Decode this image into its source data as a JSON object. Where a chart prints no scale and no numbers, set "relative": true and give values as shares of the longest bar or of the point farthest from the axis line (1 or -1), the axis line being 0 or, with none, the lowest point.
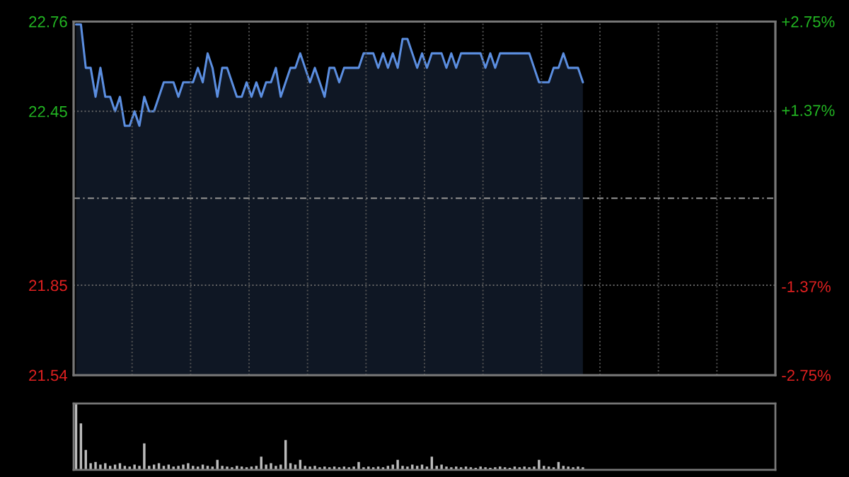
{
  "chart_data": [
    {
      "type": "area",
      "categories": [
        null,
        null,
        null,
        null,
        null,
        null,
        null,
        null,
        null,
        null,
        null,
        null,
        null,
        null,
        null,
        null,
        null,
        null,
        null,
        null,
        null,
        null,
        null,
        null,
        null,
        null,
        null,
        null,
        null,
        null,
        null,
        null,
        null,
        null,
        null,
        null,
        null,
        null,
        null,
        null,
        null,
        null,
        null,
        null,
        null,
        null,
        null,
        null,
        null,
        null,
        null,
        null,
        null,
        null,
        null,
        null,
        null,
        null,
        null,
        null,
        null,
        null,
        null,
        null,
        null,
        null,
        null,
        null,
        null,
        null,
        null,
        null,
        null,
        null,
        null,
        null,
        null,
        null,
        null,
        null,
        null,
        null,
        null,
        null,
        null,
        null,
        null,
        null,
        null,
        null,
        null,
        null,
        null,
        null,
        null,
        null,
        null,
        null,
        null,
        null,
        null,
        null,
        null,
        null,
        null,
        null,
        null,
        null,
        null,
        null,
        null,
        null,
        null,
        null,
        null,
        null,
        null,
        null,
        null,
        null,
        null,
        null,
        null,
        null,
        null,
        null,
        null,
        null,
        null,
        null,
        null,
        null,
        null,
        null,
        null,
        null,
        null,
        null,
        null,
        null,
        null,
        null,
        null,
        null
      ],
      "series": [
        {
          "color": "#5b8ee0",
          "values": [
            22.75,
            22.75,
            22.6,
            22.6,
            22.5,
            22.6,
            22.5,
            22.5,
            22.45,
            22.5,
            22.4,
            22.4,
            22.45,
            22.4,
            22.5,
            22.45,
            22.45,
            22.5,
            22.55,
            22.55,
            22.55,
            22.5,
            22.55,
            22.55,
            22.55,
            22.6,
            22.55,
            22.65,
            22.6,
            22.5,
            22.6,
            22.6,
            22.55,
            22.5,
            22.5,
            22.55,
            22.5,
            22.55,
            22.5,
            22.55,
            22.55,
            22.6,
            22.5,
            22.55,
            22.6,
            22.6,
            22.65,
            22.6,
            22.55,
            22.6,
            22.55,
            22.5,
            22.6,
            22.6,
            22.55,
            22.6,
            22.6,
            22.6,
            22.6,
            22.65,
            22.65,
            22.65,
            22.6,
            22.65,
            22.6,
            22.65,
            22.6,
            22.7,
            22.7,
            22.65,
            22.6,
            22.65,
            22.6,
            22.65,
            22.65,
            22.65,
            22.6,
            22.65,
            22.6,
            22.65,
            22.65,
            22.65,
            22.65,
            22.65,
            22.6,
            22.65,
            22.6,
            22.65,
            22.65,
            22.65,
            22.65,
            22.65,
            22.65,
            22.65,
            22.6,
            22.55,
            22.55,
            22.55,
            22.6,
            22.6,
            22.65,
            22.6,
            22.6,
            22.6,
            22.55,
            null,
            null,
            null,
            null,
            null,
            null,
            null,
            null,
            null,
            null,
            null,
            null,
            null,
            null,
            null,
            null,
            null,
            null,
            null,
            null,
            null,
            null,
            null,
            null,
            null,
            null,
            null,
            null,
            null,
            null,
            null,
            null,
            null,
            null,
            null,
            null,
            null,
            null,
            null
          ]
        }
      ],
      "ylim": [
        21.54,
        22.76
      ],
      "yticks": [
        21.54,
        21.85,
        22.45,
        22.76
      ],
      "y2lim": [
        -2.75,
        2.75
      ],
      "y2ticks": [
        {
          "value": -2.75,
          "label": "-2.75%"
        },
        {
          "value": -1.37,
          "label": "-1.37%"
        },
        {
          "value": 1.37,
          "label": "+1.37%"
        },
        {
          "value": 2.75,
          "label": "+2.75%"
        }
      ],
      "ref_lines": [
        {
          "axis": "y",
          "value": 22.15,
          "color": "#888888",
          "line_style": "dashed"
        }
      ],
      "grid": true
    },
    {
      "type": "bar",
      "relative": true,
      "categories": [
        null,
        null,
        null,
        null,
        null,
        null,
        null,
        null,
        null,
        null,
        null,
        null,
        null,
        null,
        null,
        null,
        null,
        null,
        null,
        null,
        null,
        null,
        null,
        null,
        null,
        null,
        null,
        null,
        null,
        null,
        null,
        null,
        null,
        null,
        null,
        null,
        null,
        null,
        null,
        null,
        null,
        null,
        null,
        null,
        null,
        null,
        null,
        null,
        null,
        null,
        null,
        null,
        null,
        null,
        null,
        null,
        null,
        null,
        null,
        null,
        null,
        null,
        null,
        null,
        null,
        null,
        null,
        null,
        null,
        null,
        null,
        null,
        null,
        null,
        null,
        null,
        null,
        null,
        null,
        null,
        null,
        null,
        null,
        null,
        null,
        null,
        null,
        null,
        null,
        null,
        null,
        null,
        null,
        null,
        null,
        null,
        null,
        null,
        null,
        null,
        null,
        null,
        null,
        null,
        null,
        null,
        null,
        null,
        null,
        null,
        null,
        null,
        null,
        null,
        null,
        null,
        null,
        null,
        null,
        null,
        null,
        null,
        null,
        null,
        null,
        null,
        null,
        null,
        null,
        null,
        null,
        null,
        null,
        null,
        null,
        null,
        null,
        null,
        null,
        null,
        null,
        null,
        null,
        null
      ],
      "series": [
        {
          "color": "#bbbbbb",
          "values": [
            1.0,
            0.7,
            0.3,
            0.1,
            0.12,
            0.08,
            0.1,
            0.06,
            0.08,
            0.1,
            0.06,
            0.05,
            0.08,
            0.06,
            0.4,
            0.06,
            0.08,
            0.1,
            0.06,
            0.08,
            0.05,
            0.06,
            0.08,
            0.1,
            0.06,
            0.05,
            0.08,
            0.06,
            0.05,
            0.15,
            0.06,
            0.05,
            0.04,
            0.06,
            0.05,
            0.04,
            0.05,
            0.06,
            0.2,
            0.08,
            0.1,
            0.06,
            0.08,
            0.45,
            0.1,
            0.08,
            0.15,
            0.06,
            0.05,
            0.06,
            0.04,
            0.05,
            0.04,
            0.05,
            0.04,
            0.05,
            0.04,
            0.05,
            0.12,
            0.04,
            0.05,
            0.04,
            0.05,
            0.04,
            0.06,
            0.08,
            0.15,
            0.06,
            0.05,
            0.08,
            0.06,
            0.08,
            0.05,
            0.2,
            0.06,
            0.08,
            0.05,
            0.04,
            0.05,
            0.04,
            0.05,
            0.04,
            0.03,
            0.05,
            0.04,
            0.03,
            0.04,
            0.05,
            0.04,
            0.03,
            0.05,
            0.04,
            0.05,
            0.04,
            0.05,
            0.15,
            0.06,
            0.05,
            0.04,
            0.12,
            0.06,
            0.05,
            0.04,
            0.05,
            0.04,
            null,
            null,
            null,
            null,
            null,
            null,
            null,
            null,
            null,
            null,
            null,
            null,
            null,
            null,
            null,
            null,
            null,
            null,
            null,
            null,
            null,
            null,
            null,
            null,
            null,
            null,
            null,
            null,
            null,
            null,
            null,
            null,
            null,
            null,
            null,
            null,
            null,
            null,
            null
          ]
        }
      ]
    }
  ]
}
